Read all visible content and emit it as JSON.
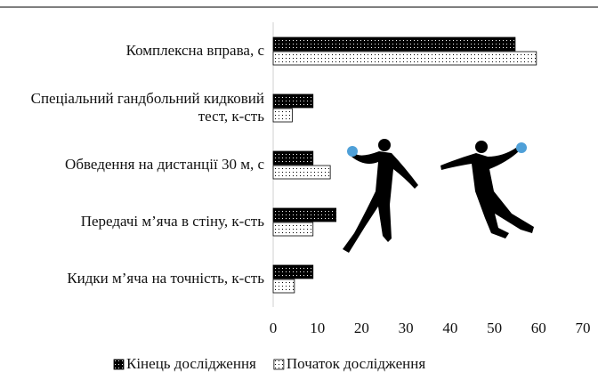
{
  "chart_data": {
    "type": "barh",
    "categories": [
      "Комплексна вправа, с",
      "Спеціальний гандбольний кидковий тест, к-сть",
      "Обведення на дистанції 30 м, с",
      "Передачі м’яча в стіну, к-сть",
      "Кидки м’яча на точність, к-сть"
    ],
    "series": [
      {
        "name": "Кінець дослідження",
        "color": "#000000",
        "values": [
          54.7,
          9,
          9,
          14.2,
          9
        ]
      },
      {
        "name": "Початок дослідження",
        "color": "#ffffff",
        "values": [
          59.5,
          4.3,
          12.9,
          9,
          4.8
        ]
      }
    ],
    "xlim": [
      0,
      70
    ],
    "xticks": [
      0,
      10,
      20,
      30,
      40,
      50,
      60,
      70
    ],
    "legend": "bottom"
  }
}
